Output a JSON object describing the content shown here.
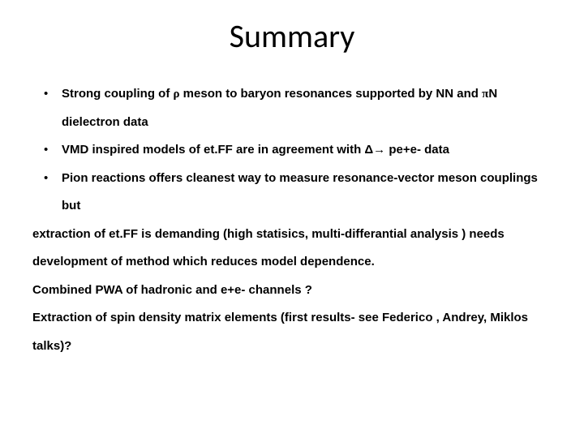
{
  "title": "Summary",
  "bullets": [
    {
      "pre": "Strong coupling of ",
      "sym1": "ρ",
      "mid": " meson to baryon resonances supported by NN and ",
      "sym2": "π",
      "post": "N dielectron data"
    },
    {
      "full": "VMD inspired models of et.FF are in agreement with Δ→ pe+e- data"
    },
    {
      "full": "Pion reactions offers cleanest way to measure resonance-vector meson couplings  but"
    }
  ],
  "paras": [
    "extraction of et.FF is demanding (high statisics, multi-differantial analysis )  needs development of method which reduces model dependence.",
    "Combined PWA of hadronic and e+e- channels ?",
    "Extraction of spin density matrix elements (first results- see Federico , Andrey, Miklos talks)?"
  ]
}
